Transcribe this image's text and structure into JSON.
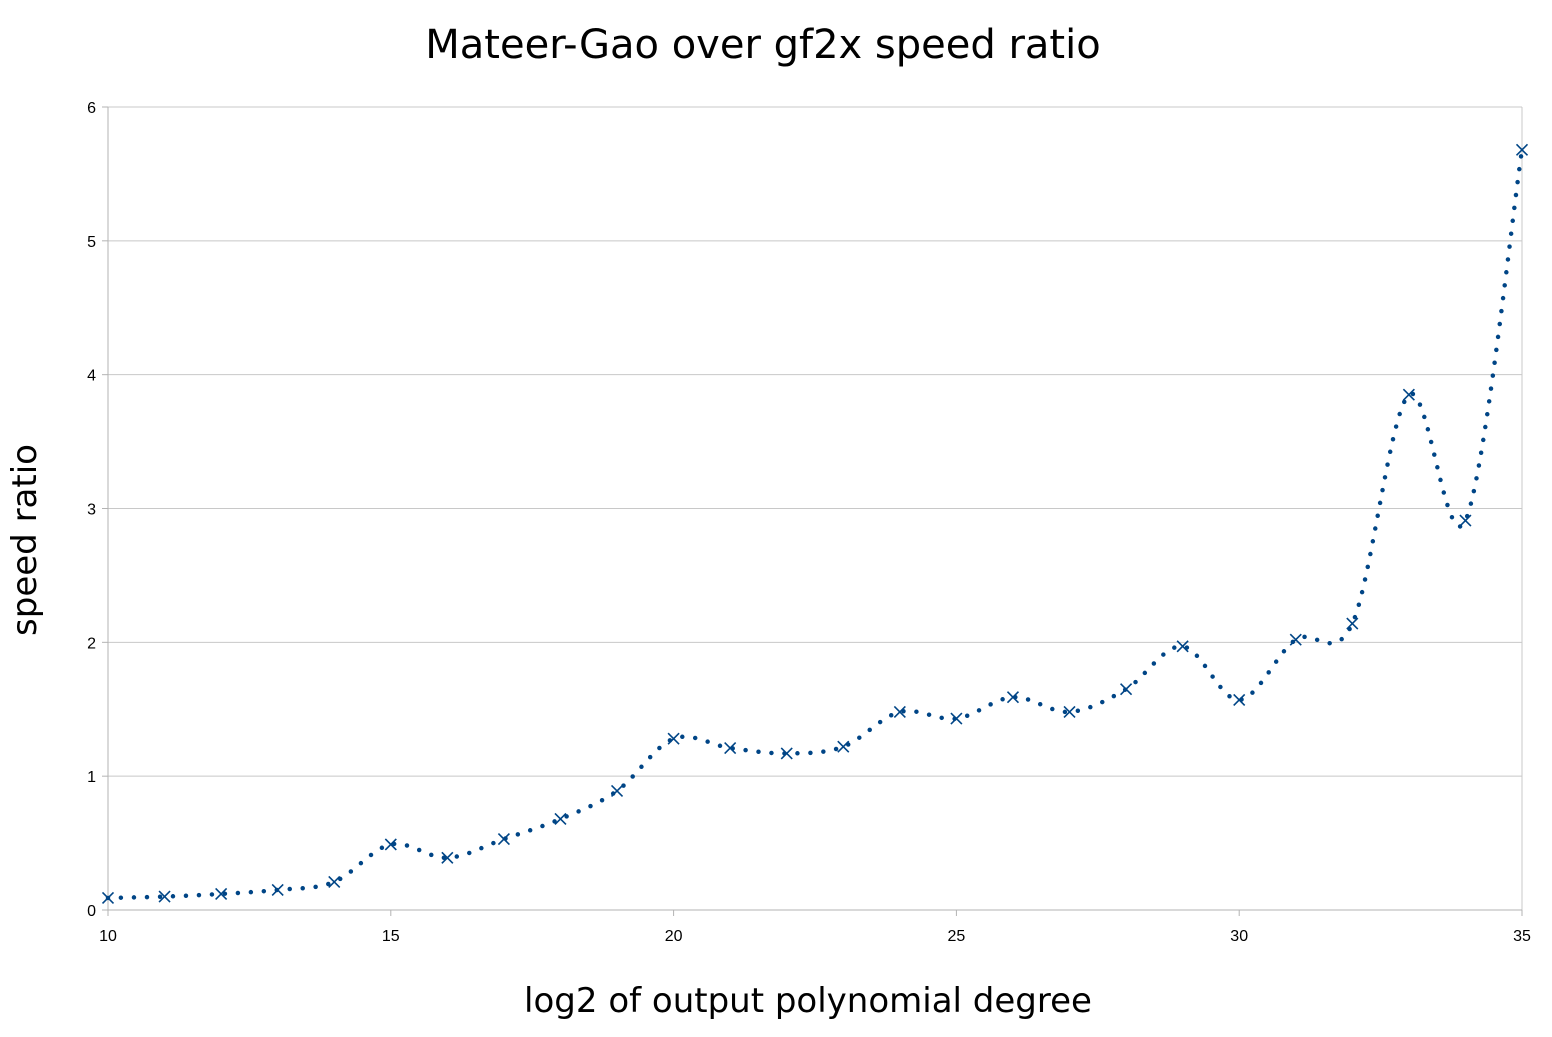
{
  "chart_data": {
    "type": "scatter",
    "title": "Mateer-Gao over gf2x speed ratio",
    "xlabel": "log2 of output polynomial degree",
    "ylabel": "speed ratio",
    "xlim": [
      10,
      35
    ],
    "ylim": [
      0,
      6
    ],
    "xticks": [
      10,
      15,
      20,
      25,
      30,
      35
    ],
    "yticks": [
      0,
      1,
      2,
      3,
      4,
      5,
      6
    ],
    "grid": true,
    "legend": "none",
    "marker": "x",
    "trendline": "dotted smooth",
    "color": "#004586",
    "x": [
      10,
      11,
      12,
      13,
      14,
      15,
      16,
      17,
      18,
      19,
      20,
      21,
      22,
      23,
      24,
      25,
      26,
      27,
      28,
      29,
      30,
      31,
      32,
      33,
      34,
      35
    ],
    "y": [
      0.09,
      0.1,
      0.12,
      0.15,
      0.21,
      0.49,
      0.39,
      0.53,
      0.68,
      0.89,
      1.28,
      1.21,
      1.17,
      1.22,
      1.48,
      1.43,
      1.59,
      1.48,
      1.65,
      1.97,
      1.57,
      2.02,
      2.14,
      3.85,
      2.91,
      5.68
    ]
  }
}
